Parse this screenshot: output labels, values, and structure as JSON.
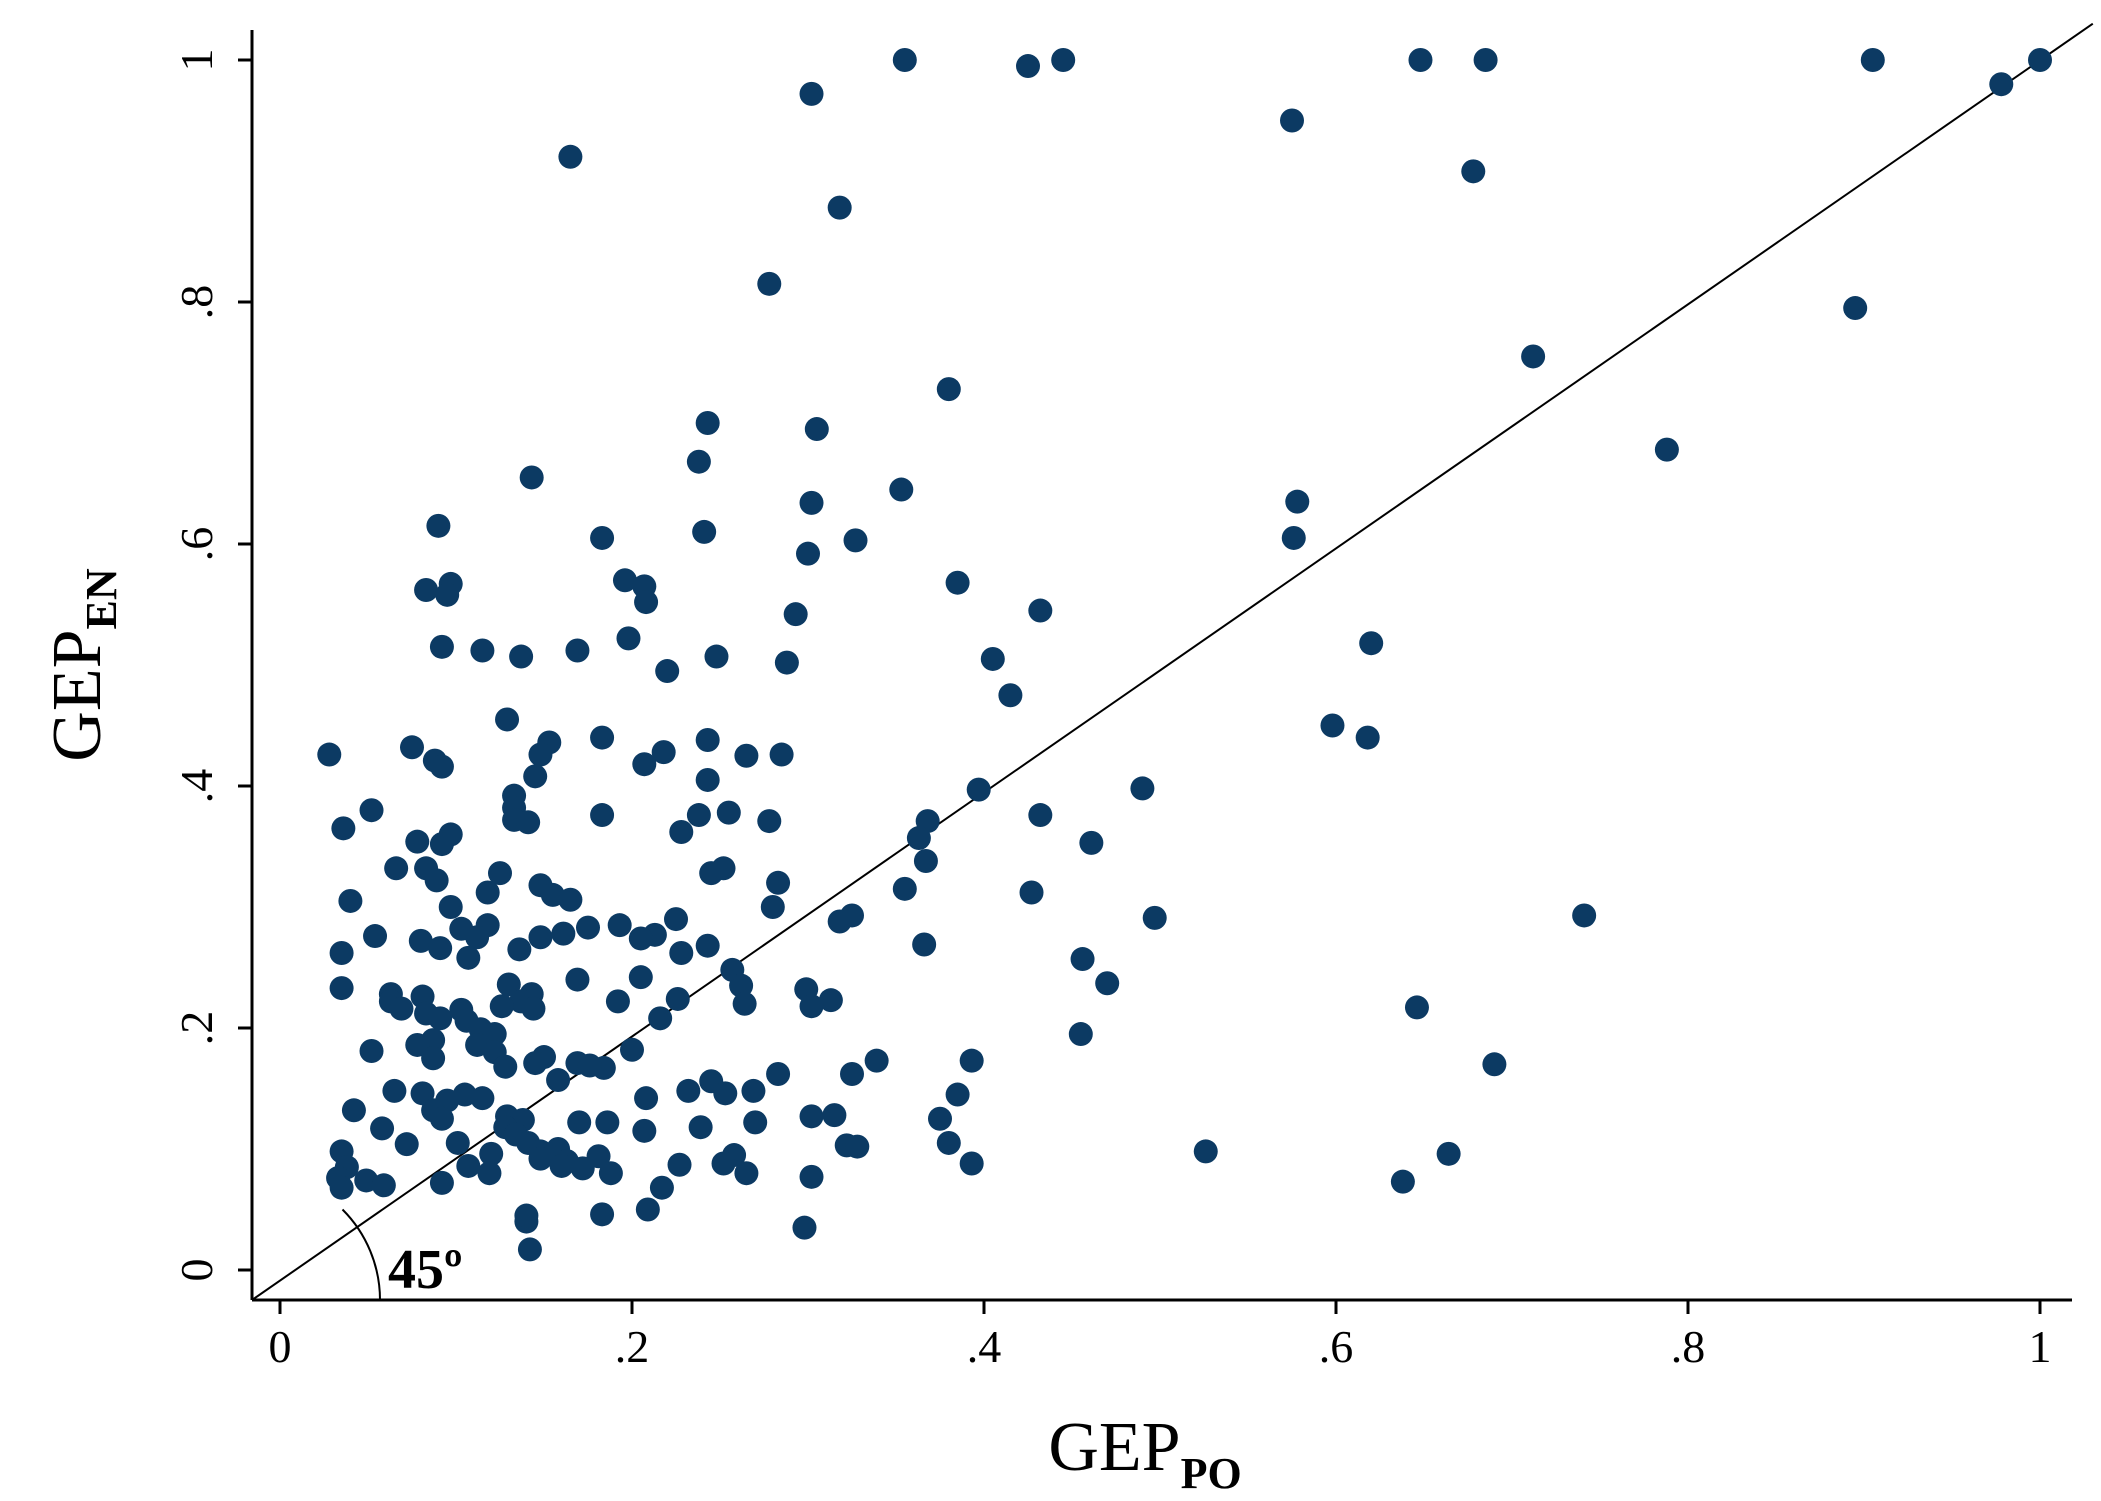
{
  "chart_data": {
    "type": "scatter",
    "xlabel": {
      "main": "GEP",
      "sub": "PO"
    },
    "ylabel": {
      "main": "GEP",
      "sub": "EN"
    },
    "xlim": [
      -0.02,
      1.03
    ],
    "ylim": [
      -0.03,
      1.03
    ],
    "x_ticks": [
      0,
      0.2,
      0.4,
      0.6,
      0.8,
      1
    ],
    "x_tick_labels": [
      "0",
      ".2",
      ".4",
      ".6",
      ".8",
      "1"
    ],
    "y_ticks": [
      0,
      0.2,
      0.4,
      0.6,
      0.8,
      1
    ],
    "y_tick_labels": [
      "0",
      ".2",
      ".4",
      ".6",
      ".8",
      "1"
    ],
    "reference_line": {
      "type": "45-degree",
      "slope": 1,
      "intercept": 0
    },
    "annotation": "45º",
    "grid": false,
    "legend": "none",
    "marker_color": "#0c3a63",
    "points": [
      [
        0.355,
        1.0
      ],
      [
        0.445,
        1.0
      ],
      [
        0.425,
        0.995
      ],
      [
        0.648,
        1.0
      ],
      [
        0.685,
        1.0
      ],
      [
        0.905,
        1.0
      ],
      [
        1.0,
        1.0
      ],
      [
        0.978,
        0.98
      ],
      [
        0.302,
        0.972
      ],
      [
        0.575,
        0.95
      ],
      [
        0.165,
        0.92
      ],
      [
        0.678,
        0.908
      ],
      [
        0.318,
        0.878
      ],
      [
        0.278,
        0.815
      ],
      [
        0.895,
        0.795
      ],
      [
        0.712,
        0.755
      ],
      [
        0.38,
        0.728
      ],
      [
        0.243,
        0.7
      ],
      [
        0.305,
        0.695
      ],
      [
        0.788,
        0.678
      ],
      [
        0.238,
        0.668
      ],
      [
        0.143,
        0.655
      ],
      [
        0.353,
        0.645
      ],
      [
        0.302,
        0.634
      ],
      [
        0.578,
        0.635
      ],
      [
        0.09,
        0.615
      ],
      [
        0.241,
        0.61
      ],
      [
        0.327,
        0.603
      ],
      [
        0.183,
        0.605
      ],
      [
        0.576,
        0.605
      ],
      [
        0.3,
        0.592
      ],
      [
        0.196,
        0.57
      ],
      [
        0.385,
        0.568
      ],
      [
        0.097,
        0.567
      ],
      [
        0.083,
        0.562
      ],
      [
        0.095,
        0.558
      ],
      [
        0.207,
        0.565
      ],
      [
        0.208,
        0.552
      ],
      [
        0.293,
        0.542
      ],
      [
        0.432,
        0.545
      ],
      [
        0.198,
        0.522
      ],
      [
        0.62,
        0.518
      ],
      [
        0.092,
        0.515
      ],
      [
        0.115,
        0.512
      ],
      [
        0.169,
        0.512
      ],
      [
        0.137,
        0.507
      ],
      [
        0.248,
        0.507
      ],
      [
        0.405,
        0.505
      ],
      [
        0.288,
        0.502
      ],
      [
        0.22,
        0.495
      ],
      [
        0.415,
        0.475
      ],
      [
        0.129,
        0.455
      ],
      [
        0.598,
        0.45
      ],
      [
        0.183,
        0.44
      ],
      [
        0.243,
        0.438
      ],
      [
        0.618,
        0.44
      ],
      [
        0.153,
        0.436
      ],
      [
        0.075,
        0.432
      ],
      [
        0.148,
        0.426
      ],
      [
        0.218,
        0.428
      ],
      [
        0.265,
        0.425
      ],
      [
        0.285,
        0.426
      ],
      [
        0.028,
        0.426
      ],
      [
        0.088,
        0.421
      ],
      [
        0.092,
        0.416
      ],
      [
        0.207,
        0.418
      ],
      [
        0.145,
        0.408
      ],
      [
        0.243,
        0.405
      ],
      [
        0.397,
        0.397
      ],
      [
        0.49,
        0.398
      ],
      [
        0.133,
        0.392
      ],
      [
        0.133,
        0.382
      ],
      [
        0.052,
        0.38
      ],
      [
        0.255,
        0.378
      ],
      [
        0.183,
        0.376
      ],
      [
        0.238,
        0.376
      ],
      [
        0.432,
        0.376
      ],
      [
        0.133,
        0.372
      ],
      [
        0.141,
        0.37
      ],
      [
        0.278,
        0.371
      ],
      [
        0.368,
        0.371
      ],
      [
        0.036,
        0.365
      ],
      [
        0.228,
        0.362
      ],
      [
        0.097,
        0.36
      ],
      [
        0.078,
        0.354
      ],
      [
        0.092,
        0.352
      ],
      [
        0.461,
        0.353
      ],
      [
        0.363,
        0.357
      ],
      [
        0.367,
        0.338
      ],
      [
        0.083,
        0.332
      ],
      [
        0.066,
        0.332
      ],
      [
        0.245,
        0.328
      ],
      [
        0.252,
        0.332
      ],
      [
        0.125,
        0.328
      ],
      [
        0.089,
        0.322
      ],
      [
        0.283,
        0.32
      ],
      [
        0.148,
        0.318
      ],
      [
        0.118,
        0.312
      ],
      [
        0.155,
        0.31
      ],
      [
        0.355,
        0.315
      ],
      [
        0.427,
        0.312
      ],
      [
        0.04,
        0.305
      ],
      [
        0.165,
        0.306
      ],
      [
        0.28,
        0.3
      ],
      [
        0.741,
        0.293
      ],
      [
        0.097,
        0.3
      ],
      [
        0.325,
        0.293
      ],
      [
        0.497,
        0.291
      ],
      [
        0.118,
        0.285
      ],
      [
        0.318,
        0.288
      ],
      [
        0.103,
        0.282
      ],
      [
        0.175,
        0.283
      ],
      [
        0.225,
        0.29
      ],
      [
        0.193,
        0.285
      ],
      [
        0.213,
        0.277
      ],
      [
        0.112,
        0.275
      ],
      [
        0.054,
        0.276
      ],
      [
        0.161,
        0.278
      ],
      [
        0.205,
        0.274
      ],
      [
        0.148,
        0.275
      ],
      [
        0.08,
        0.272
      ],
      [
        0.243,
        0.268
      ],
      [
        0.091,
        0.266
      ],
      [
        0.136,
        0.265
      ],
      [
        0.366,
        0.269
      ],
      [
        0.035,
        0.262
      ],
      [
        0.228,
        0.262
      ],
      [
        0.456,
        0.257
      ],
      [
        0.107,
        0.258
      ],
      [
        0.257,
        0.248
      ],
      [
        0.169,
        0.24
      ],
      [
        0.205,
        0.242
      ],
      [
        0.035,
        0.233
      ],
      [
        0.13,
        0.236
      ],
      [
        0.47,
        0.237
      ],
      [
        0.262,
        0.235
      ],
      [
        0.299,
        0.232
      ],
      [
        0.063,
        0.228
      ],
      [
        0.143,
        0.228
      ],
      [
        0.081,
        0.226
      ],
      [
        0.137,
        0.222
      ],
      [
        0.226,
        0.224
      ],
      [
        0.063,
        0.222
      ],
      [
        0.192,
        0.222
      ],
      [
        0.313,
        0.223
      ],
      [
        0.069,
        0.216
      ],
      [
        0.103,
        0.215
      ],
      [
        0.126,
        0.218
      ],
      [
        0.144,
        0.216
      ],
      [
        0.264,
        0.22
      ],
      [
        0.302,
        0.218
      ],
      [
        0.646,
        0.217
      ],
      [
        0.083,
        0.212
      ],
      [
        0.091,
        0.208
      ],
      [
        0.216,
        0.208
      ],
      [
        0.106,
        0.206
      ],
      [
        0.114,
        0.199
      ],
      [
        0.122,
        0.195
      ],
      [
        0.455,
        0.195
      ],
      [
        0.087,
        0.19
      ],
      [
        0.078,
        0.186
      ],
      [
        0.112,
        0.186
      ],
      [
        0.2,
        0.182
      ],
      [
        0.122,
        0.18
      ],
      [
        0.052,
        0.181
      ],
      [
        0.15,
        0.176
      ],
      [
        0.087,
        0.175
      ],
      [
        0.145,
        0.171
      ],
      [
        0.339,
        0.173
      ],
      [
        0.169,
        0.171
      ],
      [
        0.184,
        0.167
      ],
      [
        0.393,
        0.173
      ],
      [
        0.69,
        0.17
      ],
      [
        0.176,
        0.169
      ],
      [
        0.128,
        0.168
      ],
      [
        0.245,
        0.156
      ],
      [
        0.283,
        0.162
      ],
      [
        0.325,
        0.162
      ],
      [
        0.158,
        0.157
      ],
      [
        0.065,
        0.148
      ],
      [
        0.081,
        0.146
      ],
      [
        0.232,
        0.148
      ],
      [
        0.269,
        0.148
      ],
      [
        0.105,
        0.145
      ],
      [
        0.115,
        0.142
      ],
      [
        0.253,
        0.146
      ],
      [
        0.385,
        0.145
      ],
      [
        0.208,
        0.142
      ],
      [
        0.095,
        0.14
      ],
      [
        0.087,
        0.132
      ],
      [
        0.042,
        0.132
      ],
      [
        0.092,
        0.125
      ],
      [
        0.129,
        0.127
      ],
      [
        0.138,
        0.124
      ],
      [
        0.17,
        0.122
      ],
      [
        0.186,
        0.122
      ],
      [
        0.302,
        0.127
      ],
      [
        0.315,
        0.128
      ],
      [
        0.375,
        0.125
      ],
      [
        0.128,
        0.118
      ],
      [
        0.134,
        0.112
      ],
      [
        0.207,
        0.115
      ],
      [
        0.239,
        0.118
      ],
      [
        0.27,
        0.122
      ],
      [
        0.058,
        0.117
      ],
      [
        0.141,
        0.105
      ],
      [
        0.101,
        0.105
      ],
      [
        0.148,
        0.098
      ],
      [
        0.158,
        0.1
      ],
      [
        0.322,
        0.103
      ],
      [
        0.328,
        0.102
      ],
      [
        0.38,
        0.105
      ],
      [
        0.526,
        0.098
      ],
      [
        0.664,
        0.096
      ],
      [
        0.035,
        0.098
      ],
      [
        0.072,
        0.104
      ],
      [
        0.12,
        0.096
      ],
      [
        0.148,
        0.092
      ],
      [
        0.163,
        0.09
      ],
      [
        0.258,
        0.095
      ],
      [
        0.252,
        0.088
      ],
      [
        0.227,
        0.087
      ],
      [
        0.393,
        0.088
      ],
      [
        0.038,
        0.085
      ],
      [
        0.107,
        0.086
      ],
      [
        0.16,
        0.086
      ],
      [
        0.181,
        0.094
      ],
      [
        0.033,
        0.076
      ],
      [
        0.049,
        0.074
      ],
      [
        0.119,
        0.08
      ],
      [
        0.265,
        0.08
      ],
      [
        0.172,
        0.084
      ],
      [
        0.188,
        0.08
      ],
      [
        0.302,
        0.077
      ],
      [
        0.638,
        0.073
      ],
      [
        0.035,
        0.068
      ],
      [
        0.059,
        0.07
      ],
      [
        0.092,
        0.072
      ],
      [
        0.217,
        0.068
      ],
      [
        0.209,
        0.05
      ],
      [
        0.183,
        0.046
      ],
      [
        0.14,
        0.04
      ],
      [
        0.14,
        0.045
      ],
      [
        0.298,
        0.035
      ],
      [
        0.142,
        0.017
      ]
    ]
  }
}
